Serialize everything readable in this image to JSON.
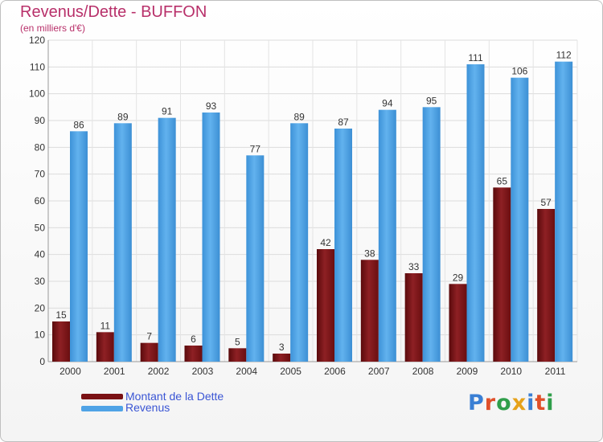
{
  "title": "Revenus/Dette - BUFFON",
  "subtitle": "(en milliers d'€)",
  "legend": {
    "debt_label": "Montant de la Dette",
    "revenue_label": "Revenus"
  },
  "logo": {
    "text": "Proxiti",
    "letter_colors": [
      "#3a7fd4",
      "#e0502a",
      "#2f9e4a",
      "#e6a21a",
      "#3a7fd4",
      "#e0502a",
      "#2f9e4a"
    ]
  },
  "colors": {
    "debt": "#7a1114",
    "revenue": "#4fa3e6",
    "title": "#b8306a",
    "legend_text": "#3a55d4"
  },
  "chart_data": {
    "type": "bar",
    "title": "Revenus/Dette - BUFFON",
    "ylabel": "(en milliers d'€)",
    "ylim": [
      0,
      120
    ],
    "yticks": [
      0,
      10,
      20,
      30,
      40,
      50,
      60,
      70,
      80,
      90,
      100,
      110,
      120
    ],
    "grid": true,
    "categories": [
      "2000",
      "2001",
      "2002",
      "2003",
      "2004",
      "2005",
      "2006",
      "2007",
      "2008",
      "2009",
      "2010",
      "2011"
    ],
    "series": [
      {
        "name": "Montant de la Dette",
        "values": [
          15,
          11,
          7,
          6,
          5,
          3,
          42,
          38,
          33,
          29,
          65,
          57
        ]
      },
      {
        "name": "Revenus",
        "values": [
          86,
          89,
          91,
          93,
          77,
          89,
          87,
          94,
          95,
          111,
          106,
          112
        ]
      }
    ]
  }
}
